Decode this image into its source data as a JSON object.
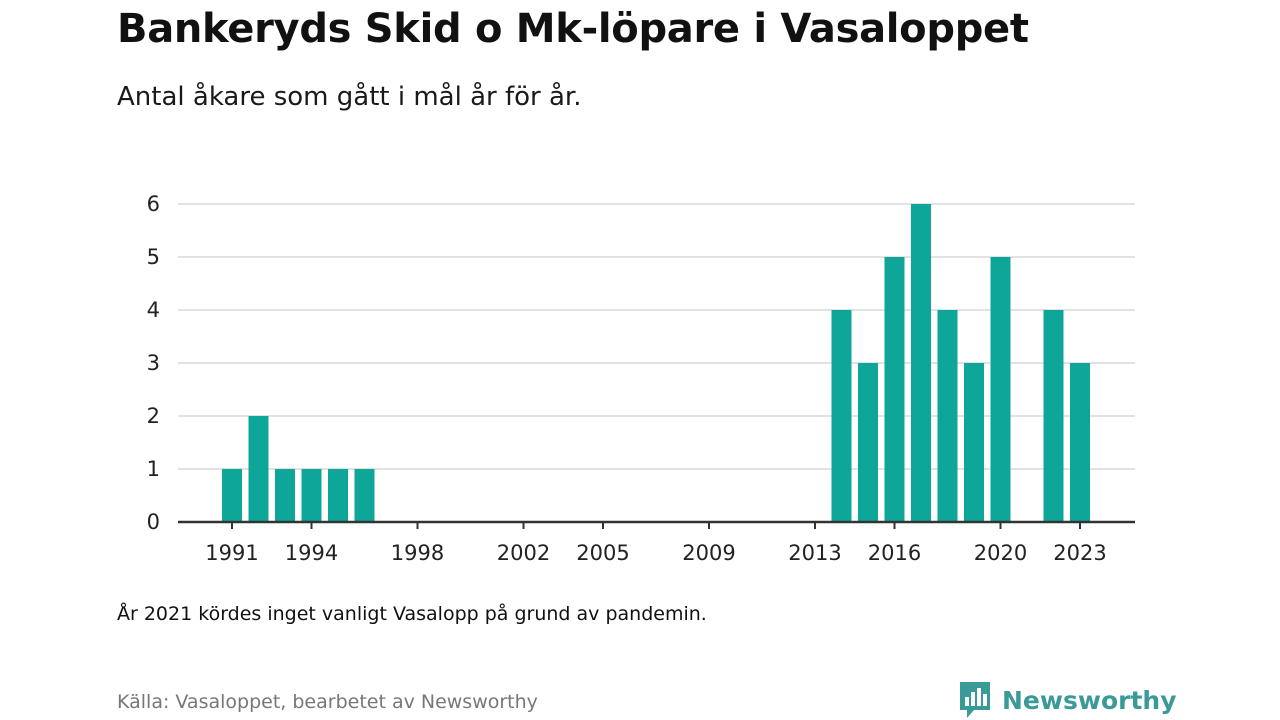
{
  "title": "Bankeryds Skid o Mk-löpare i Vasaloppet",
  "subtitle": "Antal åkare som gått i mål år för år.",
  "note": "År 2021 kördes inget vanligt Vasalopp på grund av pandemin.",
  "source": "Källa: Vasaloppet, bearbetet av Newsworthy",
  "brand": "Newsworthy",
  "colors": {
    "bar": "#0fa69a",
    "grid": "#d9d9d9",
    "axis": "#333333",
    "brand": "#3a9a98"
  },
  "chart_data": {
    "type": "bar",
    "x": [
      1991,
      1992,
      1993,
      1994,
      1995,
      1996,
      2014,
      2015,
      2016,
      2017,
      2018,
      2019,
      2020,
      2022,
      2023
    ],
    "values": [
      1,
      2,
      1,
      1,
      1,
      1,
      4,
      3,
      5,
      6,
      4,
      3,
      5,
      4,
      3
    ],
    "xlim": [
      1990,
      2025
    ],
    "ylim": [
      0,
      6
    ],
    "yticks": [
      0,
      1,
      2,
      3,
      4,
      5,
      6
    ],
    "xticks": [
      "1991",
      "1994",
      "1998",
      "2002",
      "2005",
      "2009",
      "2013",
      "2016",
      "2020",
      "2023"
    ],
    "grid": true,
    "legend": "none"
  }
}
